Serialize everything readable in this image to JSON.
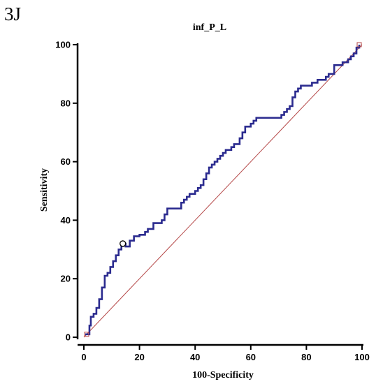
{
  "panel_label": "3J",
  "chart_data": {
    "type": "line",
    "title": "inf_P_L",
    "xlabel": "100-Specificity",
    "ylabel": "Sensitivity",
    "xlim": [
      0,
      100
    ],
    "ylim": [
      0,
      100
    ],
    "xticks": [
      0,
      20,
      40,
      60,
      80,
      100
    ],
    "yticks": [
      0,
      20,
      40,
      60,
      80,
      100
    ],
    "xtick_labels": [
      "0",
      "20",
      "40",
      "60",
      "80",
      "100"
    ],
    "ytick_labels": [
      "0",
      "20",
      "40",
      "60",
      "80",
      "100"
    ],
    "grid": false,
    "legend": "none",
    "series": [
      {
        "role": "roc-curve",
        "color": "#2b2b8f",
        "x": [
          0.5,
          1.5,
          2,
          2.5,
          3.5,
          4.5,
          5.5,
          6.5,
          7.5,
          8.5,
          9.5,
          10.5,
          11.5,
          12.5,
          13.5,
          15,
          16.5,
          18,
          20,
          22,
          23,
          25,
          27,
          28,
          29,
          30,
          35,
          36,
          37,
          38,
          39,
          40,
          41,
          42,
          43,
          44,
          45,
          46,
          47,
          48,
          49,
          50,
          51,
          52,
          53,
          54,
          55,
          56,
          57,
          58,
          59,
          60,
          61,
          62,
          63,
          65,
          70,
          71,
          72,
          73,
          74,
          75,
          76,
          77,
          78,
          82,
          83,
          84,
          86,
          87,
          88,
          89,
          90,
          92,
          93,
          95,
          96,
          97,
          98,
          99
        ],
        "y": [
          1,
          1,
          4,
          7,
          8,
          10,
          13,
          17,
          21,
          22,
          24,
          26,
          28,
          30,
          32,
          31,
          33,
          34.5,
          35,
          36,
          37,
          39,
          39,
          40,
          42,
          44,
          46,
          47,
          48,
          49,
          49,
          50,
          51,
          52,
          54,
          56,
          58,
          59,
          60,
          61,
          62,
          63,
          64,
          64,
          65,
          66,
          66,
          68,
          70,
          72,
          72,
          73,
          74,
          75,
          75,
          75,
          75,
          76,
          77,
          78,
          79,
          82,
          84,
          85,
          86,
          87,
          87,
          88,
          88,
          89,
          90,
          90,
          93,
          93,
          94,
          95,
          96,
          97,
          99,
          100
        ],
        "style": "step"
      },
      {
        "role": "reference-diagonal",
        "color": "#b54848",
        "x": [
          0,
          100
        ],
        "y": [
          0,
          100
        ]
      }
    ],
    "cutoff_marker": {
      "x": 14,
      "y": 32
    },
    "corner_markers": [
      {
        "x": 1,
        "y": 1
      },
      {
        "x": 99,
        "y": 100
      }
    ]
  }
}
